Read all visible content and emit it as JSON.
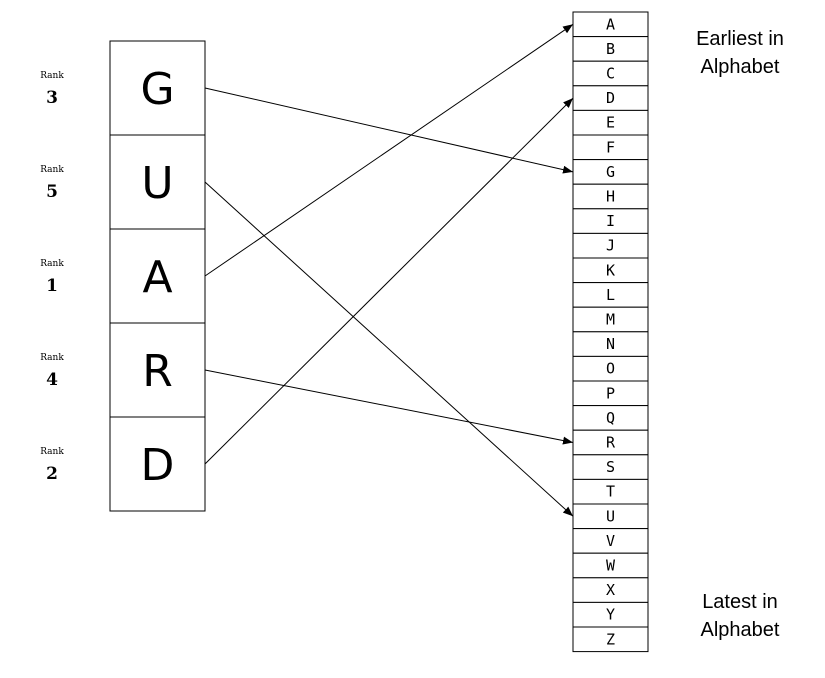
{
  "word": {
    "letters": [
      "G",
      "U",
      "A",
      "R",
      "D"
    ],
    "rank_label": "Rank",
    "ranks": [
      "3",
      "5",
      "1",
      "4",
      "2"
    ]
  },
  "alphabet": [
    "A",
    "B",
    "C",
    "D",
    "E",
    "F",
    "G",
    "H",
    "I",
    "J",
    "K",
    "L",
    "M",
    "N",
    "O",
    "P",
    "Q",
    "R",
    "S",
    "T",
    "U",
    "V",
    "W",
    "X",
    "Y",
    "Z"
  ],
  "labels": {
    "earliest_line1": "Earliest in",
    "earliest_line2": "Alphabet",
    "latest_line1": "Latest in",
    "latest_line2": "Alphabet"
  },
  "mappings": [
    {
      "from": "G",
      "to": "G"
    },
    {
      "from": "U",
      "to": "U"
    },
    {
      "from": "A",
      "to": "A"
    },
    {
      "from": "R",
      "to": "R"
    },
    {
      "from": "D",
      "to": "D"
    }
  ]
}
